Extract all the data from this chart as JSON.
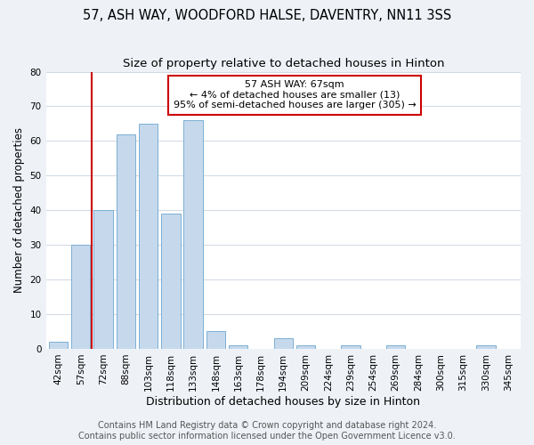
{
  "title1": "57, ASH WAY, WOODFORD HALSE, DAVENTRY, NN11 3SS",
  "title2": "Size of property relative to detached houses in Hinton",
  "xlabel": "Distribution of detached houses by size in Hinton",
  "ylabel": "Number of detached properties",
  "bar_labels": [
    "42sqm",
    "57sqm",
    "72sqm",
    "88sqm",
    "103sqm",
    "118sqm",
    "133sqm",
    "148sqm",
    "163sqm",
    "178sqm",
    "194sqm",
    "209sqm",
    "224sqm",
    "239sqm",
    "254sqm",
    "269sqm",
    "284sqm",
    "300sqm",
    "315sqm",
    "330sqm",
    "345sqm"
  ],
  "bar_values": [
    2,
    30,
    40,
    62,
    65,
    39,
    66,
    5,
    1,
    0,
    3,
    1,
    0,
    1,
    0,
    1,
    0,
    0,
    0,
    1,
    0
  ],
  "bar_color": "#c6d9ec",
  "bar_edge_color": "#7bafd4",
  "ylim": [
    0,
    80
  ],
  "yticks": [
    0,
    10,
    20,
    30,
    40,
    50,
    60,
    70,
    80
  ],
  "red_line_color": "#cc0000",
  "annotation_line1": "57 ASH WAY: 67sqm",
  "annotation_line2": "← 4% of detached houses are smaller (13)",
  "annotation_line3": "95% of semi-detached houses are larger (305) →",
  "annotation_box_color": "#ffffff",
  "annotation_box_edge": "#cc0000",
  "footer1": "Contains HM Land Registry data © Crown copyright and database right 2024.",
  "footer2": "Contains public sector information licensed under the Open Government Licence v3.0.",
  "background_color": "#eef2f7",
  "plot_bg_color": "#ffffff",
  "grid_color": "#d0d8e4",
  "title1_fontsize": 10.5,
  "title2_fontsize": 9.5,
  "xlabel_fontsize": 9,
  "ylabel_fontsize": 8.5,
  "tick_fontsize": 7.5,
  "footer_fontsize": 7,
  "red_line_index": 1.5
}
